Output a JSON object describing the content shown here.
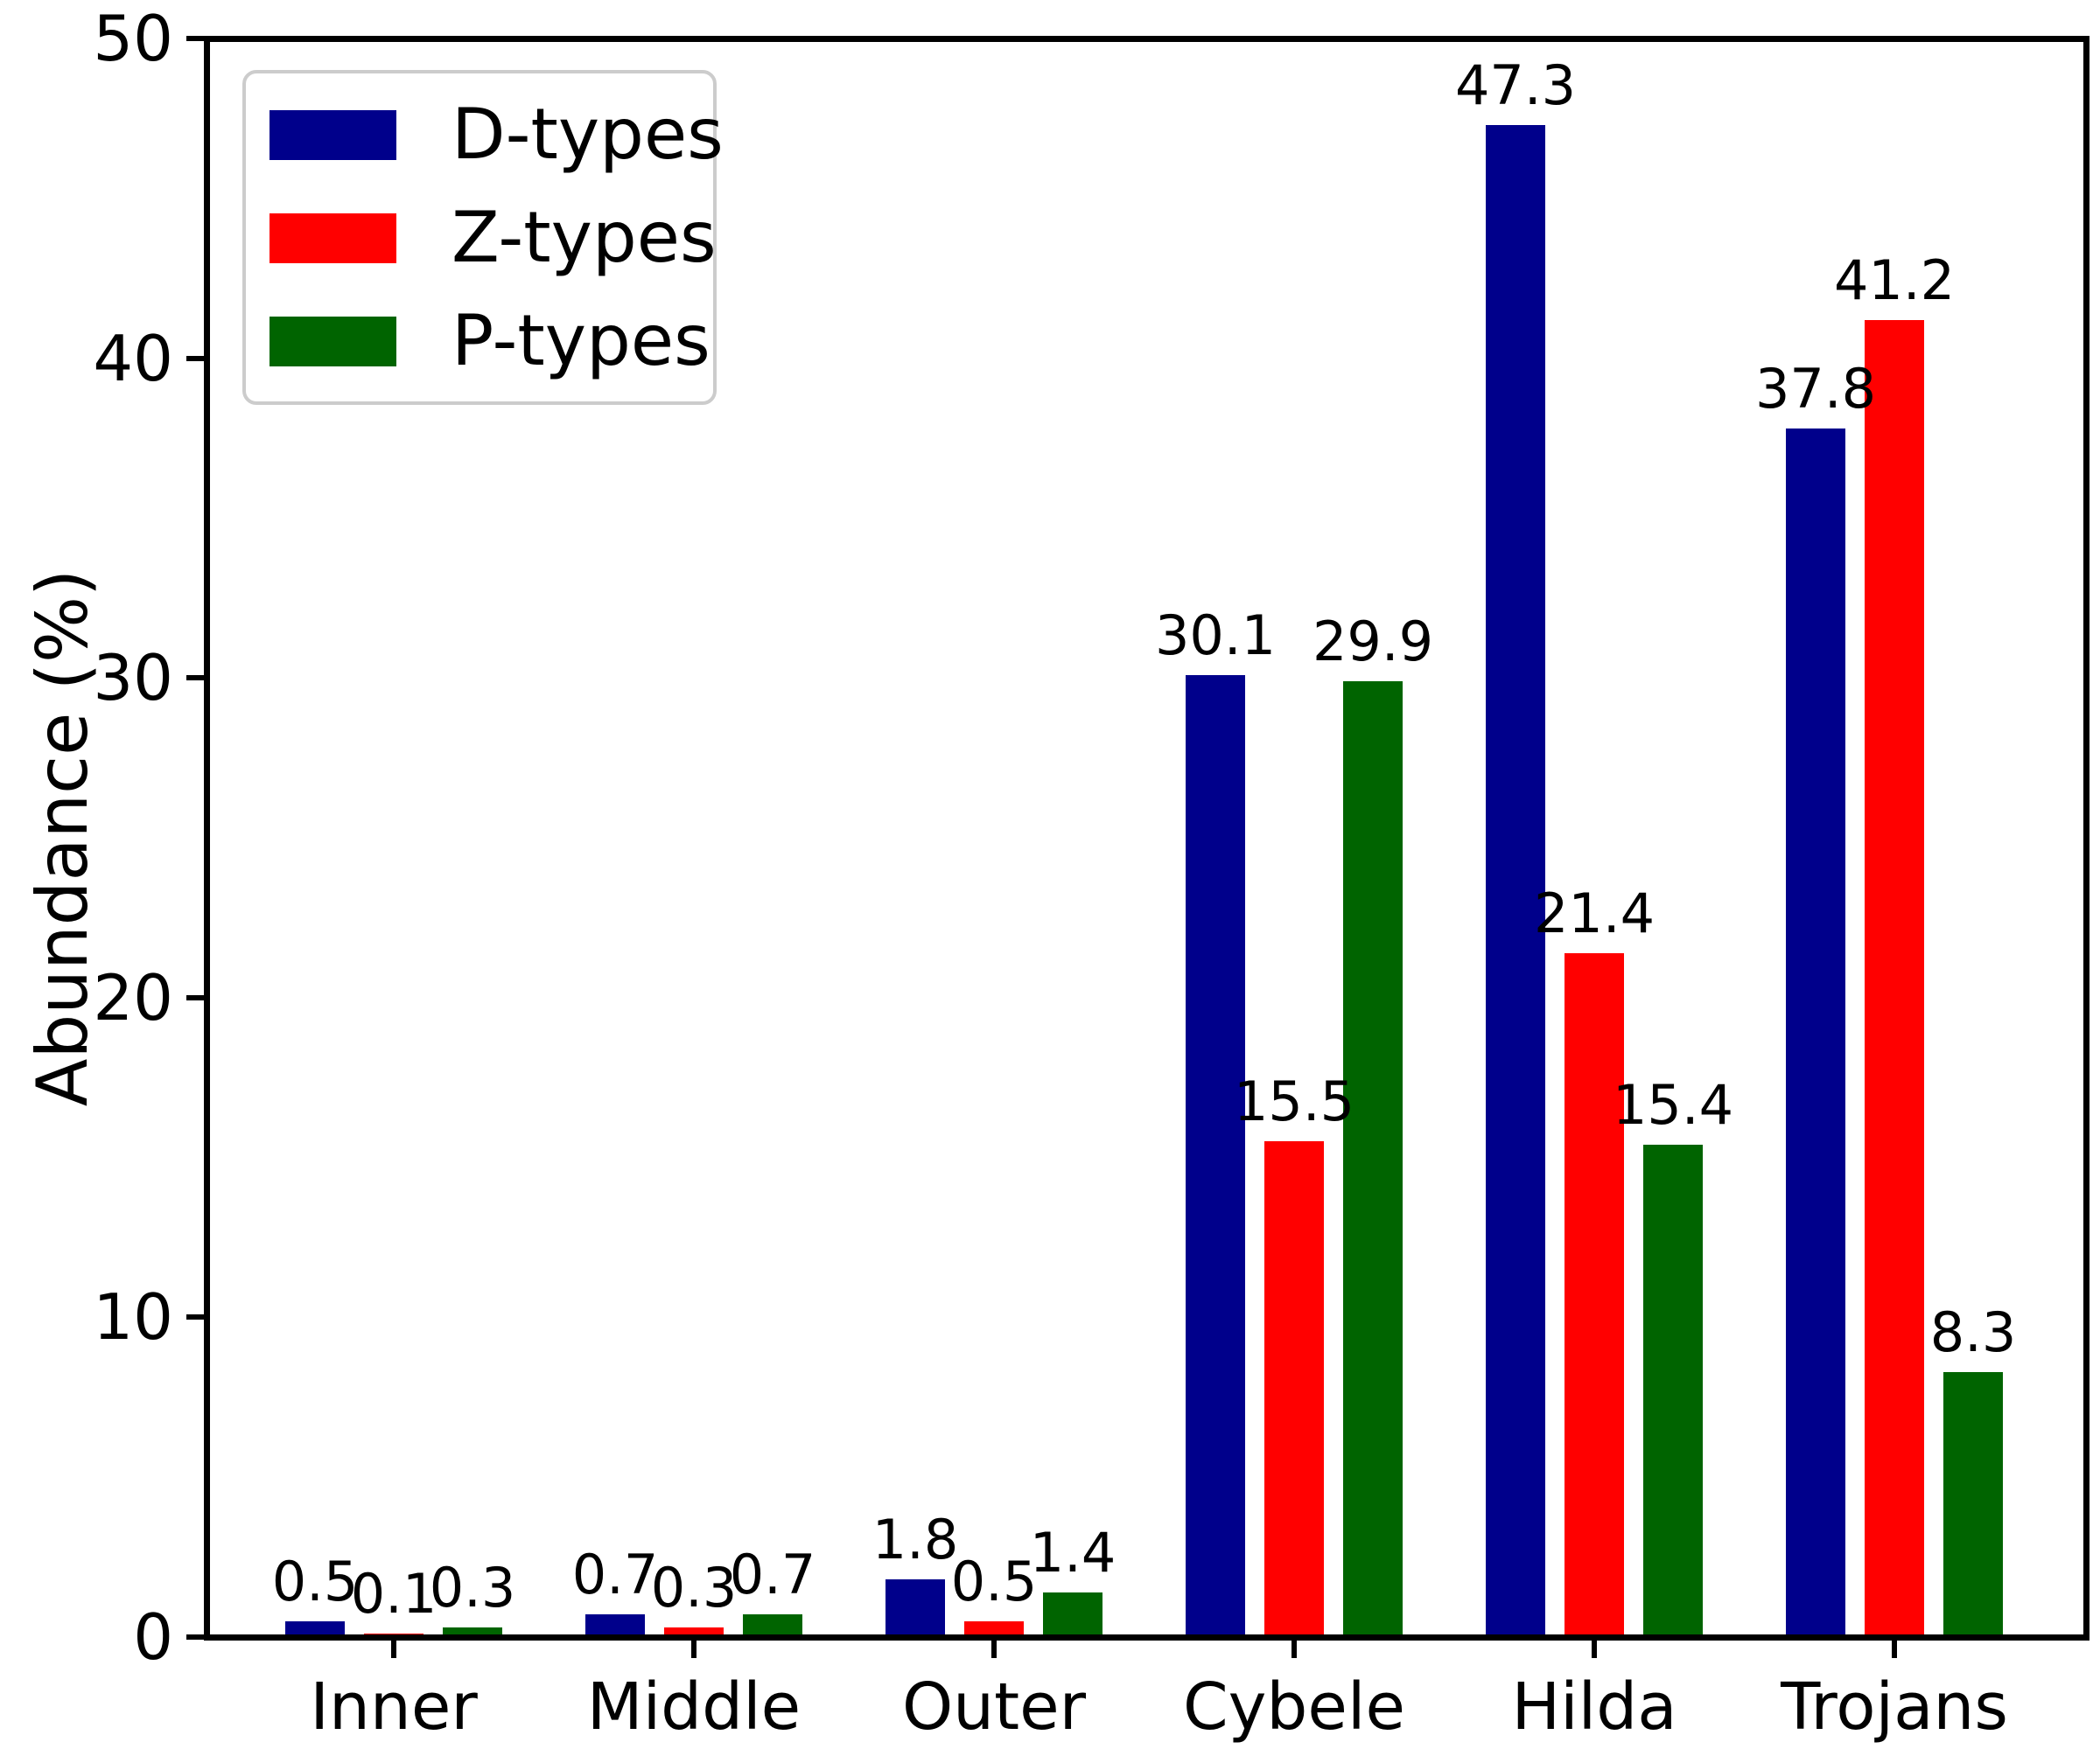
{
  "chart_data": {
    "type": "bar",
    "title": "",
    "categories": [
      "Inner",
      "Middle",
      "Outer",
      "Cybele",
      "Hilda",
      "Trojans"
    ],
    "series": [
      {
        "name": "D-types",
        "color": "#00008b",
        "values": [
          0.5,
          0.7,
          1.8,
          30.1,
          47.3,
          37.8
        ]
      },
      {
        "name": "Z-types",
        "color": "#ff0000",
        "values": [
          0.1,
          0.3,
          0.5,
          15.5,
          21.4,
          41.2
        ]
      },
      {
        "name": "P-types",
        "color": "#006400",
        "values": [
          0.3,
          0.7,
          1.4,
          29.9,
          15.4,
          8.3
        ]
      }
    ],
    "bar_value_labels": [
      "0.5",
      "0.7",
      "1.8",
      "30.1",
      "47.3",
      "37.8",
      "0.1",
      "0.3",
      "0.5",
      "15.5",
      "21.4",
      "41.2",
      "0.3",
      "0.7",
      "1.4",
      "29.9",
      "15.4",
      "8.3"
    ],
    "xlabel": "",
    "ylabel": "Abundance (%)",
    "ylim": [
      0,
      50
    ],
    "yticks": [
      "0",
      "10",
      "20",
      "30",
      "40",
      "50"
    ],
    "grid": false,
    "legend_position": "upper-left",
    "axis_color": "#000000",
    "legend_border_color": "#cccccc",
    "background_color": "#ffffff"
  }
}
